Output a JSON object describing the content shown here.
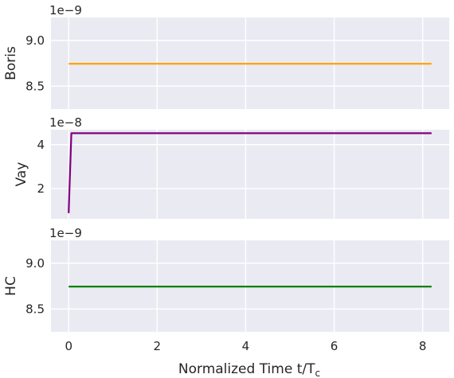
{
  "chart_data": [
    {
      "type": "line",
      "ylabel": "Boris",
      "multiplier": "1e−9",
      "ylim": [
        8.25,
        9.25
      ],
      "yticks": [
        8.5,
        9.0
      ],
      "ytick_labels": [
        "8.5",
        "9.0"
      ],
      "xlim": [
        -0.4,
        8.6
      ],
      "xticks": [
        0,
        2,
        4,
        6,
        8
      ],
      "grid": true,
      "series": [
        {
          "color": "#ffa500",
          "x": [
            0,
            8.2
          ],
          "y": [
            8.745,
            8.745
          ]
        }
      ]
    },
    {
      "type": "line",
      "ylabel": "Vay",
      "multiplier": "1e−8",
      "ylim": [
        0.62,
        4.68
      ],
      "yticks": [
        2,
        4
      ],
      "ytick_labels": [
        "2",
        "4"
      ],
      "xlim": [
        -0.4,
        8.6
      ],
      "xticks": [
        0,
        2,
        4,
        6,
        8
      ],
      "grid": true,
      "series": [
        {
          "color": "#800080",
          "x": [
            0,
            0.06,
            8.2
          ],
          "y": [
            0.88,
            4.52,
            4.52
          ]
        }
      ]
    },
    {
      "type": "line",
      "ylabel": "HC",
      "multiplier": "1e−9",
      "ylim": [
        8.25,
        9.25
      ],
      "yticks": [
        8.5,
        9.0
      ],
      "ytick_labels": [
        "8.5",
        "9.0"
      ],
      "xlim": [
        -0.4,
        8.6
      ],
      "xticks": [
        0,
        2,
        4,
        6,
        8
      ],
      "xtick_labels": [
        "0",
        "2",
        "4",
        "6",
        "8"
      ],
      "grid": true,
      "series": [
        {
          "color": "#008000",
          "x": [
            0,
            8.2
          ],
          "y": [
            8.745,
            8.745
          ]
        }
      ]
    }
  ],
  "xlabel": "Normalized Time t/T",
  "xlabel_subscript": "c",
  "colors": {
    "face": "#eaeaf2",
    "grid": "#ffffff",
    "text": "#262626"
  }
}
